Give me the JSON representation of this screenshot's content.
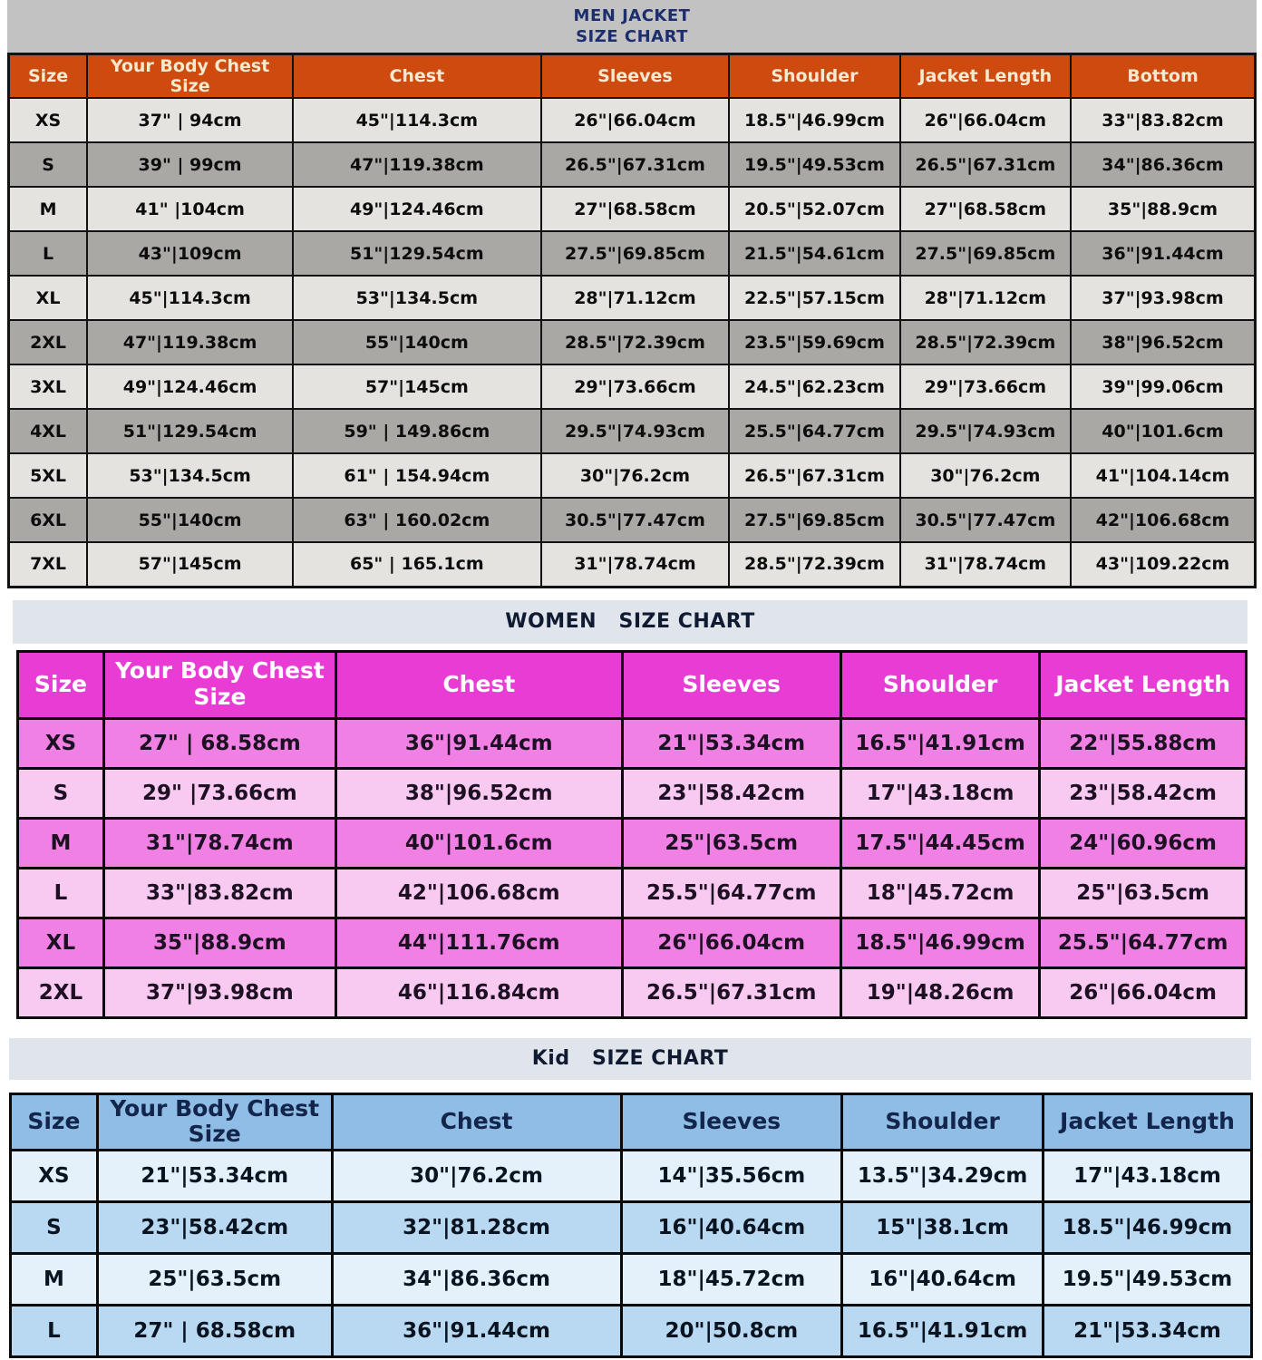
{
  "colors": {
    "men_header_bg": "#cf4a0e",
    "men_header_text": "#f5ead0",
    "men_row_light": "#e4e3e0",
    "men_row_dark": "#a9a8a5",
    "women_header_bg": "#e83cd5",
    "women_row_bright": "#f180e5",
    "women_row_light": "#f8c9f1",
    "kid_header_bg": "#8fbde6",
    "kid_row_light": "#e4f0fa",
    "kid_row_medium": "#b9d9f2",
    "band_gray": "#c2c2c2",
    "band_light": "#dfe5ea",
    "title_navy": "#1c2e6e"
  },
  "sections": {
    "men": {
      "title_line1": "MEN JACKET",
      "title_line2": "SIZE CHART"
    },
    "women": {
      "title": "WOMEN   SIZE CHART"
    },
    "kid": {
      "title": "Kid   SIZE CHART"
    }
  },
  "tables": [
    {
      "id": "men",
      "headers": [
        "Size",
        "Your Body Chest Size",
        "Chest",
        "Sleeves",
        "Shoulder",
        "Jacket Length",
        "Bottom"
      ],
      "rows": [
        [
          "XS",
          "37\" | 94cm",
          "45\"|114.3cm",
          "26\"|66.04cm",
          "18.5\"|46.99cm",
          "26\"|66.04cm",
          "33\"|83.82cm"
        ],
        [
          "S",
          "39\" | 99cm",
          "47\"|119.38cm",
          "26.5\"|67.31cm",
          "19.5\"|49.53cm",
          "26.5\"|67.31cm",
          "34\"|86.36cm"
        ],
        [
          "M",
          "41\" |104cm",
          "49\"|124.46cm",
          "27\"|68.58cm",
          "20.5\"|52.07cm",
          "27\"|68.58cm",
          "35\"|88.9cm"
        ],
        [
          "L",
          "43\"|109cm",
          "51\"|129.54cm",
          "27.5\"|69.85cm",
          "21.5\"|54.61cm",
          "27.5\"|69.85cm",
          "36\"|91.44cm"
        ],
        [
          "XL",
          "45\"|114.3cm",
          "53\"|134.5cm",
          "28\"|71.12cm",
          "22.5\"|57.15cm",
          "28\"|71.12cm",
          "37\"|93.98cm"
        ],
        [
          "2XL",
          "47\"|119.38cm",
          "55\"|140cm",
          "28.5\"|72.39cm",
          "23.5\"|59.69cm",
          "28.5\"|72.39cm",
          "38\"|96.52cm"
        ],
        [
          "3XL",
          "49\"|124.46cm",
          "57\"|145cm",
          "29\"|73.66cm",
          "24.5\"|62.23cm",
          "29\"|73.66cm",
          "39\"|99.06cm"
        ],
        [
          "4XL",
          "51\"|129.54cm",
          "59\" | 149.86cm",
          "29.5\"|74.93cm",
          "25.5\"|64.77cm",
          "29.5\"|74.93cm",
          "40\"|101.6cm"
        ],
        [
          "5XL",
          "53\"|134.5cm",
          "61\" | 154.94cm",
          "30\"|76.2cm",
          "26.5\"|67.31cm",
          "30\"|76.2cm",
          "41\"|104.14cm"
        ],
        [
          "6XL",
          "55\"|140cm",
          "63\" | 160.02cm",
          "30.5\"|77.47cm",
          "27.5\"|69.85cm",
          "30.5\"|77.47cm",
          "42\"|106.68cm"
        ],
        [
          "7XL",
          "57\"|145cm",
          "65\" | 165.1cm",
          "31\"|78.74cm",
          "28.5\"|72.39cm",
          "31\"|78.74cm",
          "43\"|109.22cm"
        ]
      ]
    },
    {
      "id": "women",
      "headers": [
        "Size",
        "Your Body Chest Size",
        "Chest",
        "Sleeves",
        "Shoulder",
        "Jacket Length"
      ],
      "rows": [
        [
          "XS",
          "27\" | 68.58cm",
          "36\"|91.44cm",
          "21\"|53.34cm",
          "16.5\"|41.91cm",
          "22\"|55.88cm"
        ],
        [
          "S",
          "29\" |73.66cm",
          "38\"|96.52cm",
          "23\"|58.42cm",
          "17\"|43.18cm",
          "23\"|58.42cm"
        ],
        [
          "M",
          "31\"|78.74cm",
          "40\"|101.6cm",
          "25\"|63.5cm",
          "17.5\"|44.45cm",
          "24\"|60.96cm"
        ],
        [
          "L",
          "33\"|83.82cm",
          "42\"|106.68cm",
          "25.5\"|64.77cm",
          "18\"|45.72cm",
          "25\"|63.5cm"
        ],
        [
          "XL",
          "35\"|88.9cm",
          "44\"|111.76cm",
          "26\"|66.04cm",
          "18.5\"|46.99cm",
          "25.5\"|64.77cm"
        ],
        [
          "2XL",
          "37\"|93.98cm",
          "46\"|116.84cm",
          "26.5\"|67.31cm",
          "19\"|48.26cm",
          "26\"|66.04cm"
        ]
      ]
    },
    {
      "id": "kid",
      "headers": [
        "Size",
        "Your Body Chest Size",
        "Chest",
        "Sleeves",
        "Shoulder",
        "Jacket Length"
      ],
      "rows": [
        [
          "XS",
          "21\"|53.34cm",
          "30\"|76.2cm",
          "14\"|35.56cm",
          "13.5\"|34.29cm",
          "17\"|43.18cm"
        ],
        [
          "S",
          "23\"|58.42cm",
          "32\"|81.28cm",
          "16\"|40.64cm",
          "15\"|38.1cm",
          "18.5\"|46.99cm"
        ],
        [
          "M",
          "25\"|63.5cm",
          "34\"|86.36cm",
          "18\"|45.72cm",
          "16\"|40.64cm",
          "19.5\"|49.53cm"
        ],
        [
          "L",
          "27\" | 68.58cm",
          "36\"|91.44cm",
          "20\"|50.8cm",
          "16.5\"|41.91cm",
          "21\"|53.34cm"
        ]
      ]
    }
  ]
}
